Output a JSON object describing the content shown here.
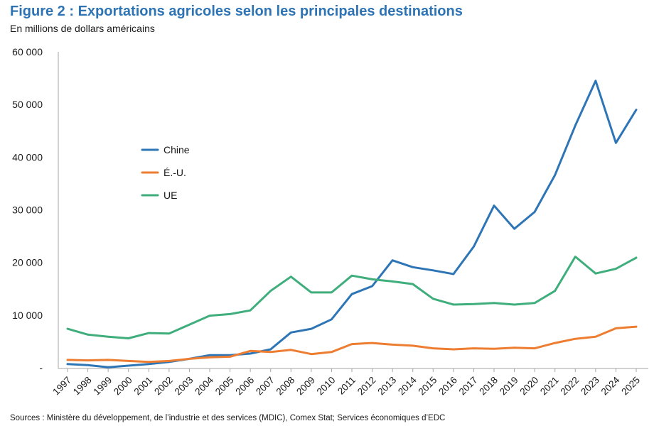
{
  "figure": {
    "title": "Figure 2 : Exportations agricoles selon les principales destinations",
    "subtitle": "En millions de dollars américains",
    "source": "Sources : Ministère du développement, de l’industrie et des services (MDIC), Comex Stat; Services économiques d’EDC"
  },
  "chart_data": {
    "type": "line",
    "title": "Figure 2 : Exportations agricoles selon les principales destinations",
    "subtitle": "En millions de dollars américains",
    "xlabel": "",
    "ylabel": "En millions de dollars américains",
    "ylim": [
      0,
      60000
    ],
    "y_ticks": [
      0,
      10000,
      20000,
      30000,
      40000,
      50000,
      60000
    ],
    "y_tick_labels": [
      "-",
      "10 000",
      "20 000",
      "30 000",
      "40 000",
      "50 000",
      "60 000"
    ],
    "grid": false,
    "legend_position": "center-left",
    "categories": [
      "1997",
      "1998",
      "1999",
      "2000",
      "2001",
      "2002",
      "2003",
      "2004",
      "2005",
      "2006",
      "2007",
      "2008",
      "2009",
      "2010",
      "2011",
      "2012",
      "2013",
      "2014",
      "2015",
      "2016",
      "2017",
      "2018",
      "2019",
      "2020",
      "2021",
      "2022",
      "2023",
      "2024",
      "2025"
    ],
    "series": [
      {
        "name": "Chine",
        "color": "#2e75b6",
        "values": [
          700,
          500,
          100,
          400,
          700,
          1100,
          1700,
          2400,
          2400,
          2700,
          3500,
          6700,
          7400,
          9200,
          14000,
          15500,
          20400,
          19100,
          18500,
          17800,
          23000,
          30800,
          26400,
          29600,
          36600,
          46000,
          54500,
          42700,
          49000
        ]
      },
      {
        "name": "É.-U.",
        "color": "#ed7d31",
        "values": [
          1500,
          1400,
          1500,
          1300,
          1100,
          1300,
          1700,
          2000,
          2100,
          3200,
          3000,
          3400,
          2600,
          3000,
          4500,
          4700,
          4400,
          4200,
          3700,
          3500,
          3700,
          3600,
          3800,
          3700,
          4700,
          5500,
          5900,
          7500,
          7800
        ]
      },
      {
        "name": "UE",
        "color": "#3fae7c",
        "values": [
          7400,
          6300,
          5900,
          5600,
          6600,
          6500,
          8200,
          9900,
          10200,
          10900,
          14600,
          17300,
          14300,
          14300,
          17500,
          16800,
          16400,
          15900,
          13100,
          12000,
          12100,
          12300,
          12000,
          12300,
          14600,
          21100,
          17900,
          18800,
          20900
        ]
      }
    ]
  }
}
